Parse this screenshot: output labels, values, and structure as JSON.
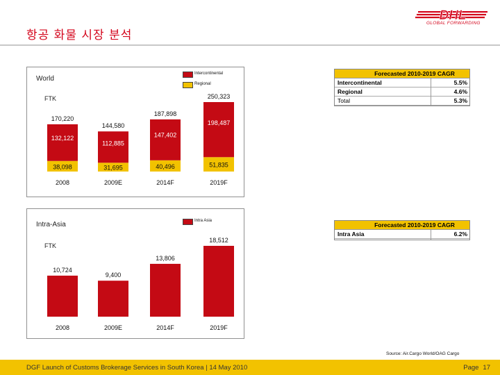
{
  "page": {
    "title": "항공 화물 시장 분석",
    "logo_text": "DHL",
    "logo_subtext": "GLOBAL FORWARDING",
    "source": "Source: Air.Cargo World/OAG Cargo",
    "footer_text": "DGF Launch of Customs Brokerage Services in South Korea | 14 May 2010",
    "page_label": "Page",
    "page_number": "17"
  },
  "colors": {
    "accent_red": "#d4051c",
    "dhl_yellow": "#f2c200",
    "intercontinental": "#c40a14",
    "regional": "#f2c200"
  },
  "chart_data": [
    {
      "type": "bar",
      "stacked": true,
      "panel_title": "World",
      "unit_label": "FTK",
      "categories": [
        "2008",
        "2009E",
        "2014F",
        "2019F"
      ],
      "series": [
        {
          "name": "Regional",
          "values": [
            38098,
            31695,
            40496,
            51835
          ],
          "labels": [
            "38,098",
            "31,695",
            "40,496",
            "51,835"
          ],
          "color": "#f2c200"
        },
        {
          "name": "Intercontinental",
          "values": [
            132122,
            112885,
            147402,
            198487
          ],
          "labels": [
            "132,122",
            "112,885",
            "147,402",
            "198,487"
          ],
          "color": "#c40a14"
        }
      ],
      "totals": [
        170220,
        144580,
        187898,
        250323
      ],
      "total_labels": [
        "170,220",
        "144,580",
        "187,898",
        "250,323"
      ],
      "legend": [
        "Intercontinental",
        "Regional"
      ],
      "legend_position": "top-right",
      "grid": false
    },
    {
      "type": "bar",
      "panel_title": "Intra-Asia",
      "unit_label": "FTK",
      "categories": [
        "2008",
        "2009E",
        "2014F",
        "2019F"
      ],
      "series": [
        {
          "name": "Intra Asia",
          "values": [
            10724,
            9400,
            13806,
            18512
          ],
          "labels": [
            "10,724",
            "9,400",
            "13,806",
            "18,512"
          ],
          "color": "#c40a14"
        }
      ],
      "legend": [
        "Intra Asia"
      ],
      "legend_position": "top-right",
      "grid": false
    }
  ],
  "cagr_world": {
    "header": "Forecasted 2010-2019 CAGR",
    "rows": [
      {
        "label": "Intercontinental",
        "value": "5.5%"
      },
      {
        "label": "Regional",
        "value": "4.6%"
      },
      {
        "label": "Total",
        "value": "5.3%"
      }
    ]
  },
  "cagr_asia": {
    "header": "Forecasted 2010-2019 CAGR",
    "rows": [
      {
        "label": "Intra Asia",
        "value": "6.2%"
      }
    ]
  }
}
